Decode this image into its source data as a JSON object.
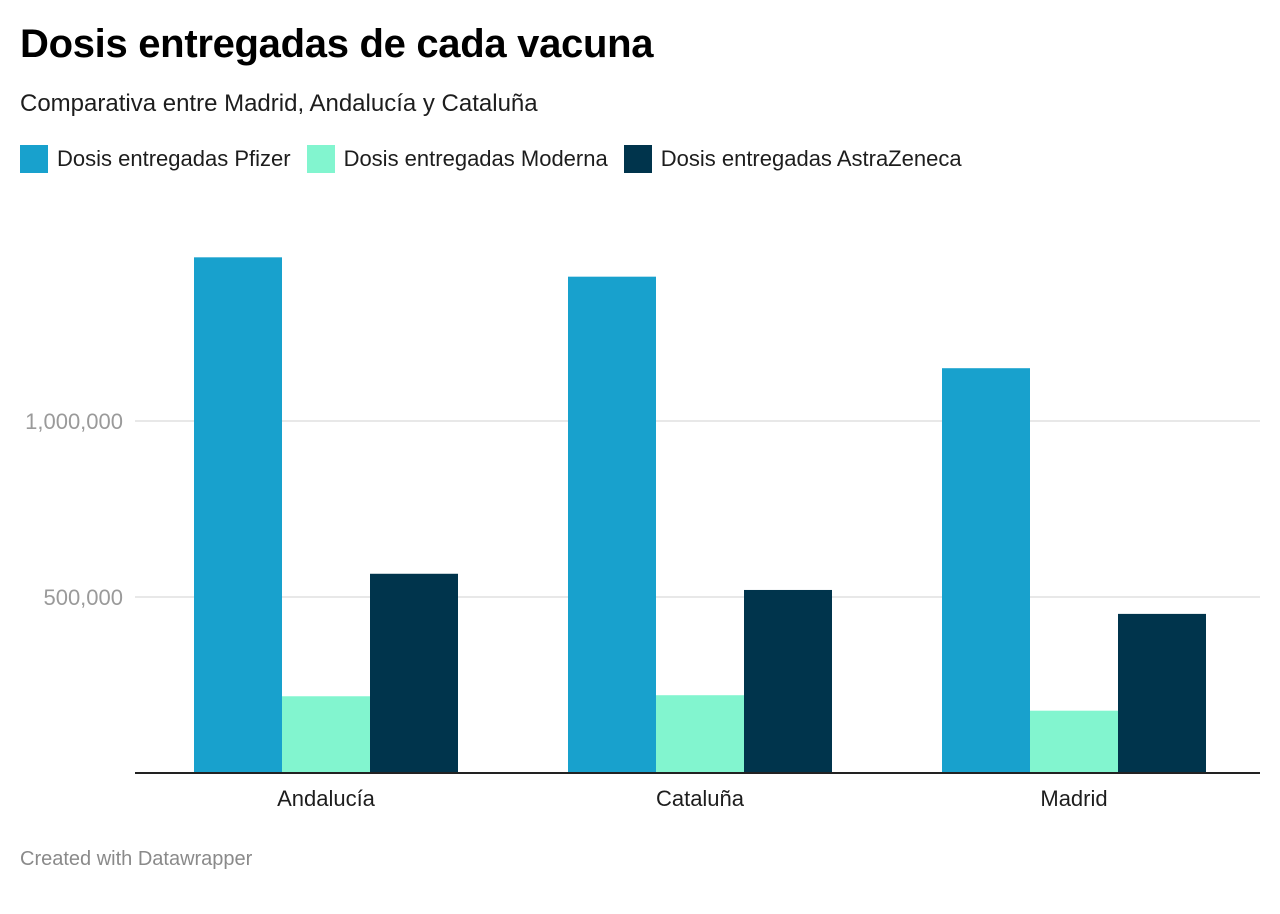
{
  "header": {
    "title": "Dosis entregadas de cada vacuna",
    "subtitle": "Comparativa entre Madrid, Andalucía y Cataluña"
  },
  "footer": {
    "credit": "Created with Datawrapper"
  },
  "chart_data": {
    "type": "bar",
    "categories": [
      "Andalucía",
      "Cataluña",
      "Madrid"
    ],
    "series": [
      {
        "name": "Dosis entregadas Pfizer",
        "color": "#18a1cd",
        "values": [
          1465000,
          1410000,
          1150000
        ]
      },
      {
        "name": "Dosis entregadas Moderna",
        "color": "#82f5cf",
        "values": [
          218000,
          221000,
          177000
        ]
      },
      {
        "name": "Dosis entregadas AstraZeneca",
        "color": "#00344c",
        "values": [
          566000,
          520000,
          452000
        ]
      }
    ],
    "y_ticks": [
      {
        "value": 500000,
        "label": "500,000"
      },
      {
        "value": 1000000,
        "label": "1,000,000"
      }
    ],
    "ylim": [
      0,
      1550000
    ],
    "grid": true,
    "legend_position": "top-left"
  }
}
